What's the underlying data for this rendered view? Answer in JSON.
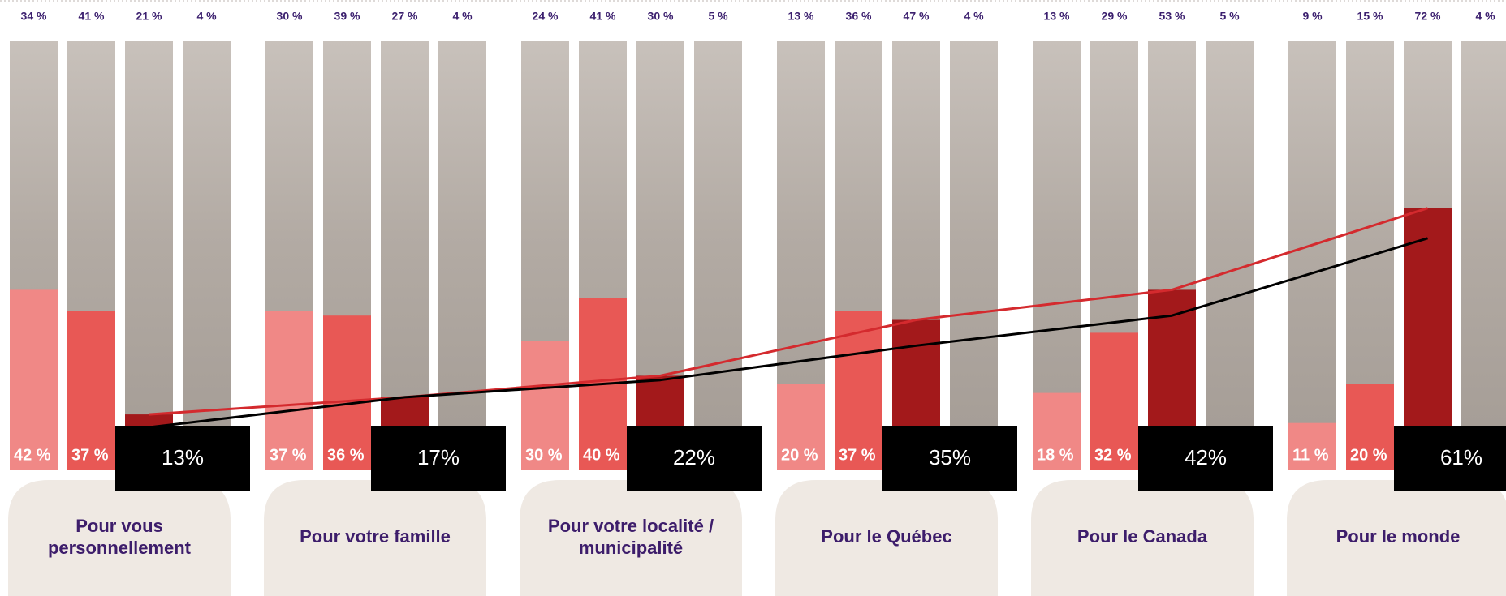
{
  "chart_data": {
    "type": "bar",
    "categories": [
      "Pour vous personnellement",
      "Pour votre famille",
      "Pour votre localité / municipalité",
      "Pour le Québec",
      "Pour le Canada",
      "Pour le monde"
    ],
    "ylim": [
      0,
      100
    ],
    "series": [
      {
        "color": "#f08886",
        "values": [
          42,
          37,
          30,
          20,
          18,
          11
        ],
        "value_labels": [
          "42 %",
          "37 %",
          "30 %",
          "20 %",
          "18 %",
          "11 %"
        ],
        "top_values": [
          34,
          30,
          24,
          13,
          13,
          9
        ],
        "top_value_labels": [
          "34 %",
          "30 %",
          "24 %",
          "13 %",
          "13 %",
          "9 %"
        ]
      },
      {
        "color": "#e85855",
        "values": [
          37,
          36,
          40,
          37,
          32,
          20
        ],
        "value_labels": [
          "37 %",
          "36 %",
          "40 %",
          "37 %",
          "32 %",
          "20 %"
        ],
        "top_values": [
          41,
          39,
          41,
          36,
          29,
          15
        ],
        "top_value_labels": [
          "41 %",
          "39 %",
          "41 %",
          "36 %",
          "29 %",
          "15 %"
        ]
      },
      {
        "color": "#a3191b",
        "line_color": "#d42a2e",
        "values": [
          13,
          17,
          22,
          35,
          42,
          61
        ],
        "value_labels": [
          "13%",
          "17%",
          "22%",
          "35%",
          "42%",
          "61%"
        ],
        "top_values": [
          21,
          27,
          30,
          47,
          53,
          72
        ],
        "top_value_labels": [
          "21 %",
          "27 %",
          "30 %",
          "47 %",
          "53 %",
          "72 %"
        ]
      },
      {
        "color": "#aea69f",
        "top_values": [
          4,
          4,
          5,
          4,
          5,
          4
        ],
        "top_value_labels": [
          "4 %",
          "4 %",
          "5 %",
          "4 %",
          "5 %",
          "4 %"
        ]
      },
      {
        "type": "line",
        "color": "#000000",
        "values": [
          10,
          17,
          21,
          29,
          36,
          54
        ]
      }
    ]
  }
}
